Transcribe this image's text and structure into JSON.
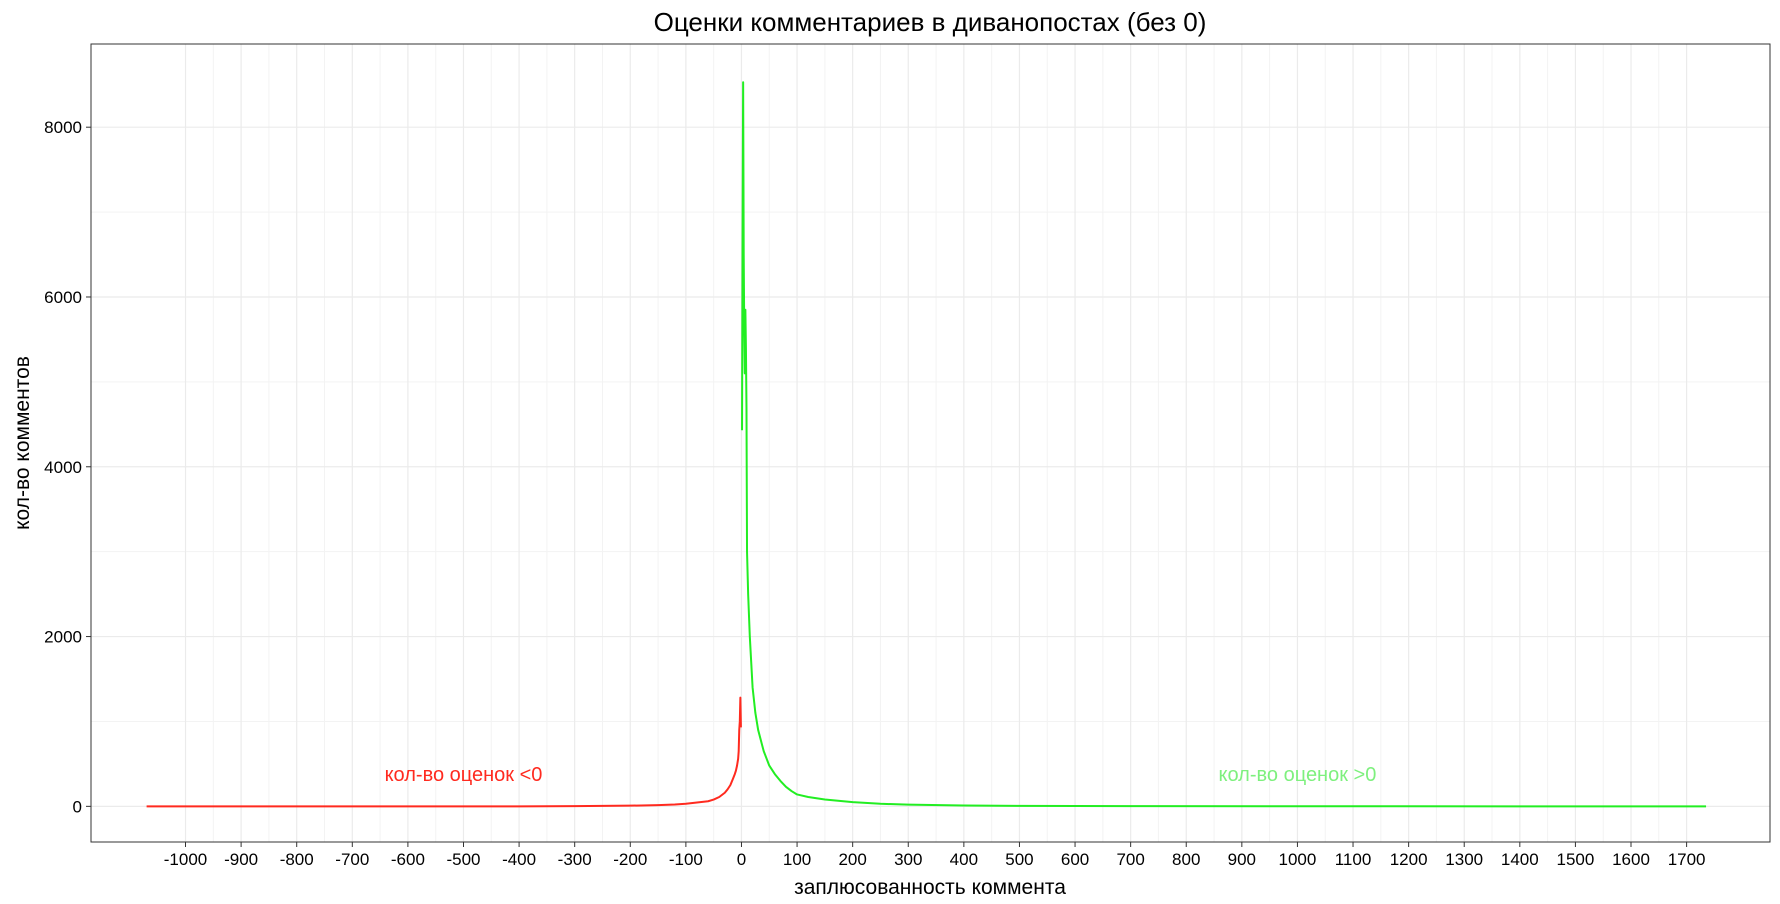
{
  "chart_data": {
    "type": "line",
    "title": "Оценки комментариев в диванопостах (без 0)",
    "xlabel": "заплюсованность коммента",
    "ylabel": "кол-во комментов",
    "xlim": [
      -1170,
      1850
    ],
    "ylim": [
      -420,
      8980
    ],
    "x_ticks": [
      -1000,
      -900,
      -800,
      -700,
      -600,
      -500,
      -400,
      -300,
      -200,
      -100,
      0,
      100,
      200,
      300,
      400,
      500,
      600,
      700,
      800,
      900,
      1000,
      1100,
      1200,
      1300,
      1400,
      1500,
      1600,
      1700
    ],
    "y_ticks": [
      0,
      2000,
      4000,
      6000,
      8000
    ],
    "grid": true,
    "legend": "none",
    "series": [
      {
        "color": "#ff2a1f",
        "x": [
          -1070,
          -800,
          -600,
          -400,
          -300,
          -200,
          -150,
          -120,
          -100,
          -80,
          -60,
          -50,
          -40,
          -30,
          -25,
          -20,
          -15,
          -12,
          -10,
          -8,
          -6,
          -5,
          -4,
          -3,
          -2,
          -1
        ],
        "y": [
          0,
          0,
          0,
          0,
          2,
          8,
          15,
          22,
          30,
          45,
          60,
          80,
          110,
          160,
          200,
          250,
          330,
          380,
          420,
          480,
          560,
          650,
          900,
          1000,
          1280,
          930
        ]
      },
      {
        "color": "#22ee22",
        "x": [
          1,
          2,
          3,
          4,
          5,
          6,
          7,
          8,
          9,
          10,
          12,
          15,
          20,
          25,
          30,
          40,
          50,
          60,
          70,
          80,
          90,
          100,
          120,
          150,
          200,
          250,
          300,
          400,
          500,
          700,
          1000,
          1400,
          1735
        ],
        "y": [
          4430,
          6800,
          8530,
          6500,
          5600,
          5100,
          5850,
          5400,
          4700,
          3000,
          2500,
          2000,
          1400,
          1100,
          900,
          650,
          480,
          380,
          300,
          230,
          180,
          140,
          110,
          80,
          50,
          30,
          20,
          10,
          5,
          2,
          1,
          0,
          0
        ]
      }
    ],
    "annotations": [
      {
        "text": "кол-во оценок <0",
        "x": -500,
        "y": 380,
        "color": "#ff2a1f"
      },
      {
        "text": "кол-во оценок >0",
        "x": 1000,
        "y": 380,
        "color": "#7ef07e"
      }
    ]
  }
}
